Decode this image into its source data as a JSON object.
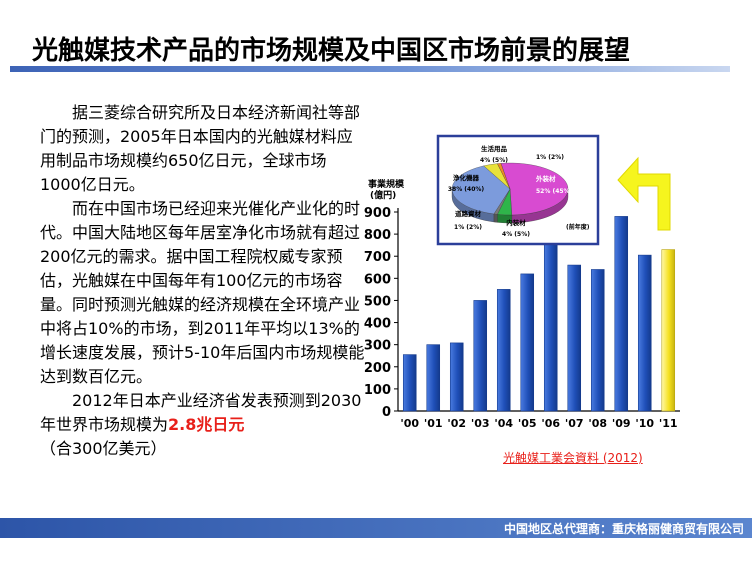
{
  "slide": {
    "title": "光触媒技术产品的市场规模及中国区市场前景的展望",
    "paragraphs": [
      "据三菱综合研究所及日本经济新闻社等部门的预测，2005年日本国内的光触媒材料应用制品市场规模约650亿日元，全球市场1000亿日元。",
      "而在中国市场已经迎来光催化产业化的时代。中国大陆地区每年居室净化市场就有超过200亿元的需求。据中国工程院权威专家预估，光触媒在中国每年有100亿元的市场容量。同时预测光触媒的经济规模在全环境产业中将占10%的市场，到2011年平均以13%的增长速度发展，预计5-10年后国内市场规模能达到数百亿元。"
    ],
    "paragraph3_prefix": "2012年日本产业经济省发表预测到2030年世界市场规模为",
    "paragraph3_highlight": "2.8兆日元",
    "paragraph3_suffix": "（合300亿美元）",
    "highlight_color": "#e8201a",
    "source": "光触媒工業会資料 (2012)",
    "footer": "中国地区总代理商：重庆格丽健商贸有限公司"
  },
  "chart_data": [
    {
      "type": "bar",
      "title": "",
      "ylabel": "事業規模\n(億円)",
      "ylabel_line1": "事業規模",
      "ylabel_line2": "(億円)",
      "categories": [
        "'00",
        "'01",
        "'02",
        "'03",
        "'04",
        "'05",
        "'06",
        "'07",
        "'08",
        "'09",
        "'10",
        "'11"
      ],
      "values": [
        255,
        300,
        308,
        500,
        550,
        620,
        760,
        660,
        640,
        880,
        705,
        730
      ],
      "last_bar_is_forecast": true,
      "ylim": [
        0,
        900
      ],
      "yticks": [
        0,
        100,
        200,
        300,
        400,
        500,
        600,
        700,
        800,
        900
      ],
      "bar_color": "#1f4fb8",
      "forecast_color": "#f5e11e",
      "grid": false
    },
    {
      "type": "pie",
      "note": "(前年度)",
      "slices": [
        {
          "name": "外装材",
          "label": "52% (45%)",
          "value": 52,
          "color": "#d84bd1"
        },
        {
          "name": "内装材",
          "label": "4% (5%)",
          "value": 4,
          "color": "#2fb54a"
        },
        {
          "name": "道路資材",
          "label": "1% (2%)",
          "value": 1,
          "color": "#7a7a7a"
        },
        {
          "name": "浄化機器",
          "label": "38% (40%)",
          "value": 38,
          "color": "#7c9bdc"
        },
        {
          "name": "生活用品",
          "label": "4% (5%)",
          "value": 4,
          "color": "#e8e23a"
        },
        {
          "name": "",
          "label": "1% (2%)",
          "value": 1,
          "color": "#f08a24"
        }
      ],
      "arrow_color": "#f6f51e"
    }
  ]
}
